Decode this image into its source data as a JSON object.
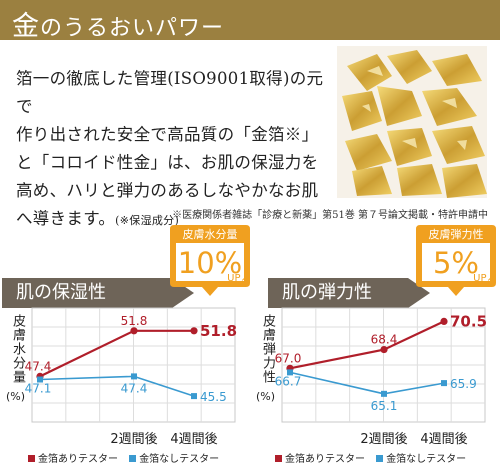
{
  "header": {
    "title_kin": "金",
    "title_rest": "のうるおいパワー"
  },
  "body": {
    "lines": [
      "箔一の徹底した管理(ISO9001取得)の元で",
      "作り出された安全で高品質の「金箔※」",
      "と「コロイド性金」は、お肌の保湿力を",
      "高め、ハリと弾力のあるしなやかなお肌",
      "へ導きます。"
    ],
    "note": "(※保湿成分)"
  },
  "source_note": "※医療関係者雑誌「診療と新薬」第51巻 第７号論文掲載・特許申請中",
  "colors": {
    "gold": "#9b8040",
    "title_bg": "#6e6458",
    "badge": "#f0a020",
    "series_gold": "#b01e2a",
    "series_control": "#3a9ad0"
  },
  "charts": [
    {
      "title": "肌の保湿性",
      "badge_top": "皮膚水分量",
      "badge_value": "10%",
      "badge_unit": "UP↗",
      "ylabel": "皮膚水分量",
      "yunit": "(%)"
    },
    {
      "title": "肌の弾力性",
      "badge_top": "皮膚弾力性",
      "badge_value": "5%",
      "badge_unit": "UP↗",
      "ylabel": "皮膚弾力性",
      "yunit": "(%)"
    }
  ],
  "legend": {
    "gold": "金箔ありテスター",
    "control": "金箔なしテスター"
  },
  "chart_data": [
    {
      "type": "line",
      "categories": [
        "",
        "2週間後",
        "4週間後"
      ],
      "series": [
        {
          "name": "金箔ありテスター",
          "values": [
            47.4,
            51.8,
            51.8
          ]
        },
        {
          "name": "金箔なしテスター",
          "values": [
            47.1,
            47.4,
            45.5
          ]
        }
      ],
      "title": "肌の保湿性",
      "ylabel": "皮膚水分量(%)",
      "ylim": [
        43,
        54
      ],
      "grid": true
    },
    {
      "type": "line",
      "categories": [
        "",
        "2週間後",
        "4週間後"
      ],
      "series": [
        {
          "name": "金箔ありテスター",
          "values": [
            67.0,
            68.4,
            70.5
          ]
        },
        {
          "name": "金箔なしテスター",
          "values": [
            66.7,
            65.1,
            65.9
          ]
        }
      ],
      "title": "肌の弾力性",
      "ylabel": "皮膚弾力性(%)",
      "ylim": [
        63,
        71.5
      ],
      "grid": true
    }
  ]
}
